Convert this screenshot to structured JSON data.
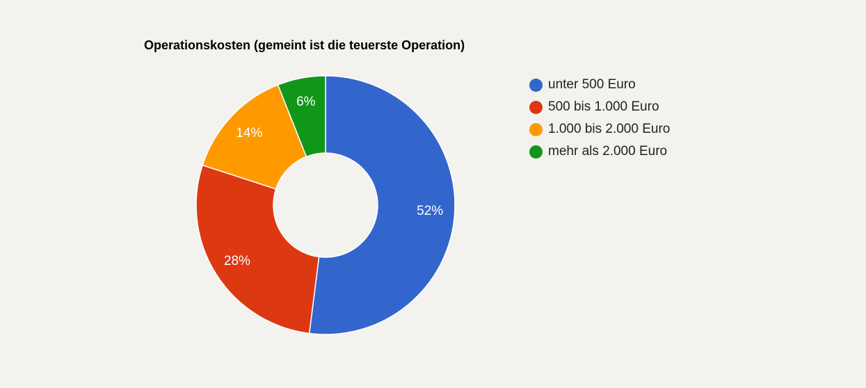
{
  "chart_data": {
    "type": "pie",
    "subtype": "donut",
    "title": "Operationskosten (gemeint ist die teuerste Operation)",
    "categories": [
      "unter 500 Euro",
      "500 bis 1.000 Euro",
      "1.000 bis 2.000 Euro",
      "mehr als 2.000 Euro"
    ],
    "values": [
      52,
      28,
      14,
      6
    ],
    "labels": [
      "52%",
      "28%",
      "14%",
      "6%"
    ],
    "colors": [
      "#3366cc",
      "#dc3912",
      "#ff9900",
      "#109618"
    ],
    "legend_position": "right",
    "unit": "%"
  },
  "background_color": "#f3f2ef"
}
